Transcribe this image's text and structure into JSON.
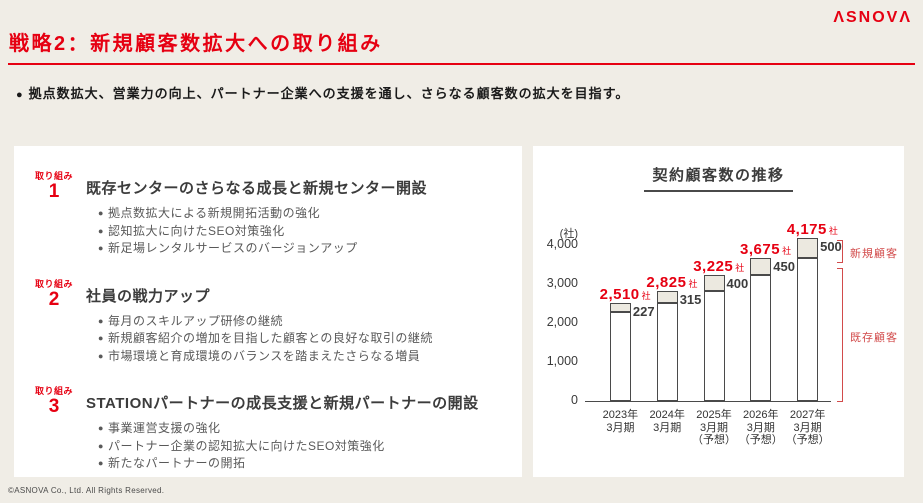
{
  "page": {
    "logo_text": "ΛSNOVΛ",
    "title": "戦略2：新規顧客数拡大への取り組み",
    "subtitle": "拠点数拡大、営業力の向上、パートナー企業への支援を通し、さらなる顧客数の拡大を目指す。",
    "footer": "©ASNOVA Co., Ltd. All Rights Reserved.",
    "colors": {
      "accent_red": "#e60012",
      "background_beige": "#f0ede6",
      "bar_new_fill": "#ece9e0",
      "bar_border": "#4a4a4a",
      "legend_red": "#d24b4b"
    }
  },
  "initiatives": {
    "label": "取り組み",
    "items": [
      {
        "number": "1",
        "heading": "既存センターのさらなる成長と新規センター開設",
        "bullets": [
          "拠点数拡大による新規開拓活動の強化",
          "認知拡大に向けたSEO対策強化",
          "新足場レンタルサービスのバージョンアップ"
        ]
      },
      {
        "number": "2",
        "heading": "社員の戦力アップ",
        "bullets": [
          "毎月のスキルアップ研修の継続",
          "新規顧客紹介の増加を目指した顧客との良好な取引の継続",
          "市場環境と育成環境のバランスを踏まえたさらなる増員"
        ]
      },
      {
        "number": "3",
        "heading": "STATIONパートナーの成長支援と新規パートナーの開設",
        "bullets": [
          "事業運営支援の強化",
          "パートナー企業の認知拡大に向けたSEO対策強化",
          "新たなパートナーの開拓"
        ]
      }
    ]
  },
  "chart_data": {
    "type": "bar",
    "stacked": true,
    "title": "契約顧客数の推移",
    "y_unit": "(社)",
    "unit_suffix": "社",
    "ylim": [
      0,
      4000
    ],
    "ytick_step": 1000,
    "ytick_labels": [
      "0",
      "1,000",
      "2,000",
      "3,000",
      "4,000"
    ],
    "categories": [
      [
        "2023年",
        "3月期"
      ],
      [
        "2024年",
        "3月期"
      ],
      [
        "2025年",
        "3月期",
        "（予想）"
      ],
      [
        "2026年",
        "3月期",
        "（予想）"
      ],
      [
        "2027年",
        "3月期",
        "（予想）"
      ]
    ],
    "series": [
      {
        "name": "既存顧客",
        "values": [
          2283,
          2510,
          2825,
          3225,
          3675
        ]
      },
      {
        "name": "新規顧客",
        "values": [
          227,
          315,
          400,
          450,
          500
        ]
      }
    ],
    "totals": [
      2510,
      2825,
      3225,
      3675,
      4175
    ],
    "total_labels": [
      "2,510",
      "2,825",
      "3,225",
      "3,675",
      "4,175"
    ],
    "new_value_labels": [
      "227",
      "315",
      "400",
      "450",
      "500"
    ],
    "legend": [
      "新規顧客",
      "既存顧客"
    ],
    "legend_position": "right"
  }
}
